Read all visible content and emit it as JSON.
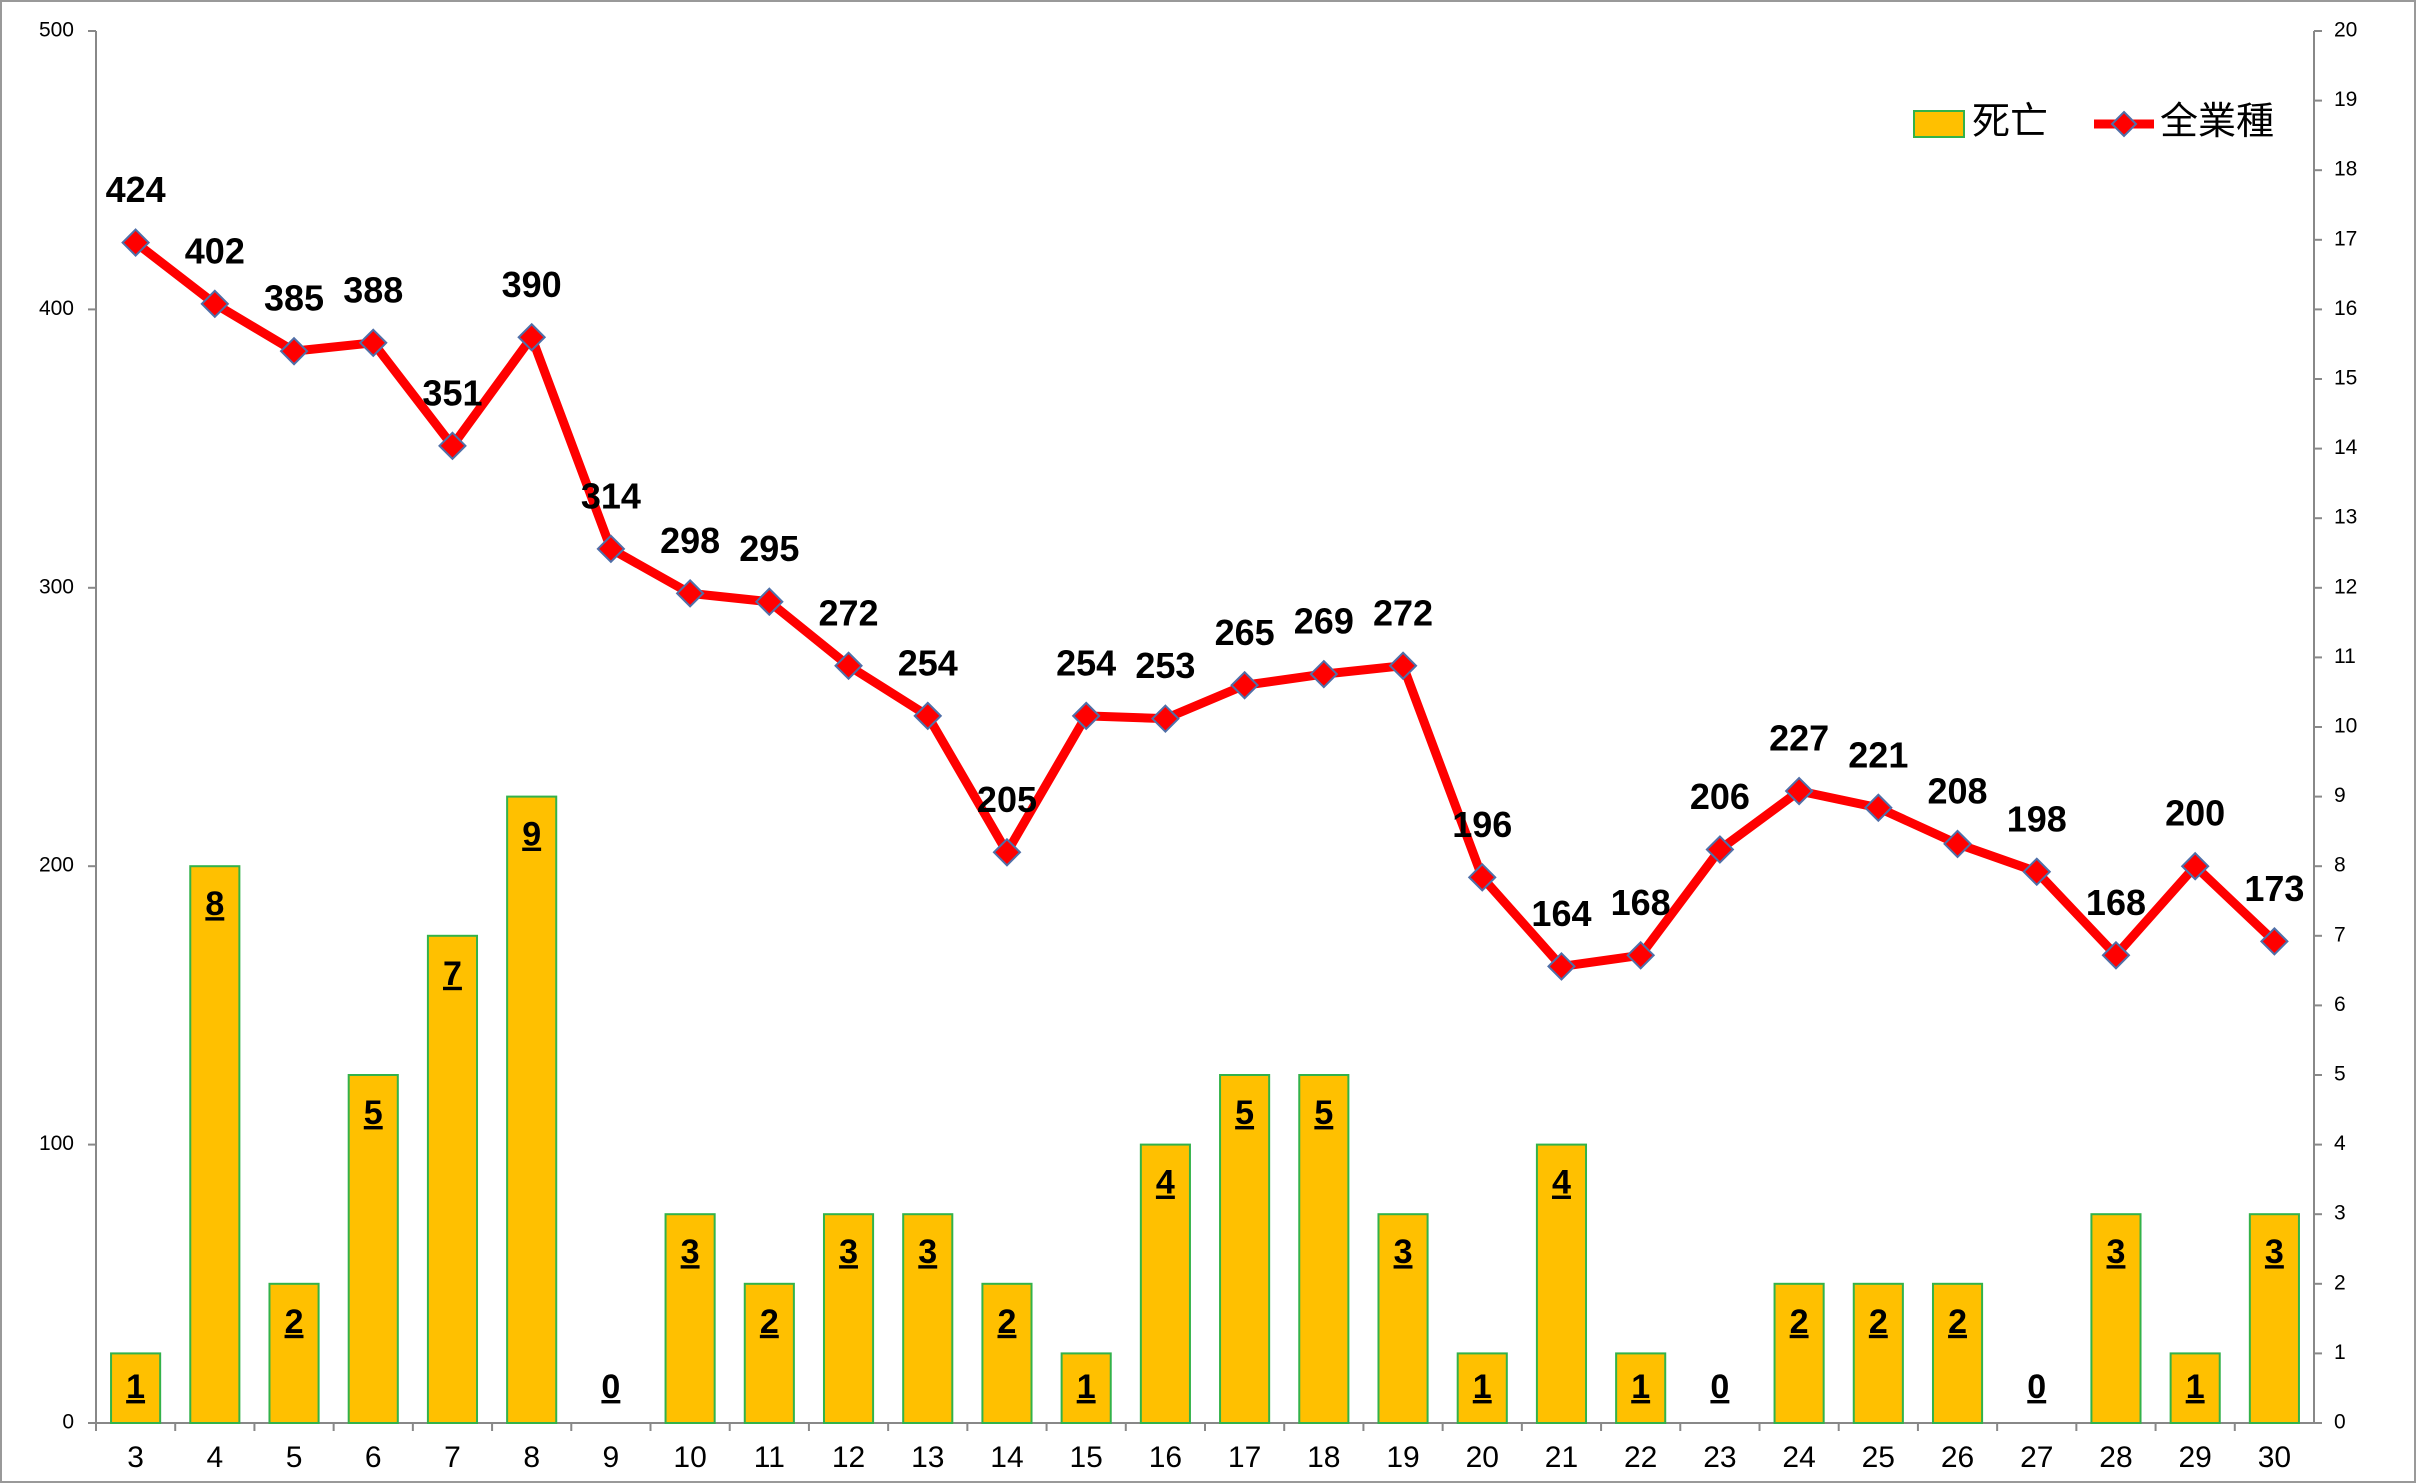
{
  "chart_data": {
    "type": "bar-line",
    "categories": [
      "3",
      "4",
      "5",
      "6",
      "7",
      "8",
      "9",
      "10",
      "11",
      "12",
      "13",
      "14",
      "15",
      "16",
      "17",
      "18",
      "19",
      "20",
      "21",
      "22",
      "23",
      "24",
      "25",
      "26",
      "27",
      "28",
      "29",
      "30"
    ],
    "series": [
      {
        "name": "死亡",
        "type": "bar",
        "axis": "y2",
        "color": "#FFC000",
        "edge": "#33B24A",
        "values": [
          1,
          8,
          2,
          5,
          7,
          9,
          0,
          3,
          2,
          3,
          3,
          2,
          1,
          4,
          5,
          5,
          3,
          1,
          4,
          1,
          0,
          2,
          2,
          2,
          0,
          3,
          1,
          3
        ]
      },
      {
        "name": "全業種",
        "type": "line",
        "axis": "y",
        "color": "#FF0000",
        "marker_edge": "#4F6FA8",
        "values": [
          424,
          402,
          385,
          388,
          351,
          390,
          314,
          298,
          295,
          272,
          254,
          205,
          254,
          253,
          265,
          269,
          272,
          196,
          164,
          168,
          206,
          227,
          221,
          208,
          198,
          168,
          200,
          173
        ]
      }
    ],
    "ylim": [
      0,
      500
    ],
    "yticks": [
      0,
      100,
      200,
      300,
      400,
      500
    ],
    "y2lim": [
      0,
      20
    ],
    "y2ticks": [
      0,
      1,
      2,
      3,
      4,
      5,
      6,
      7,
      8,
      9,
      10,
      11,
      12,
      13,
      14,
      15,
      16,
      17,
      18,
      19,
      20
    ],
    "legend": "top-right"
  }
}
